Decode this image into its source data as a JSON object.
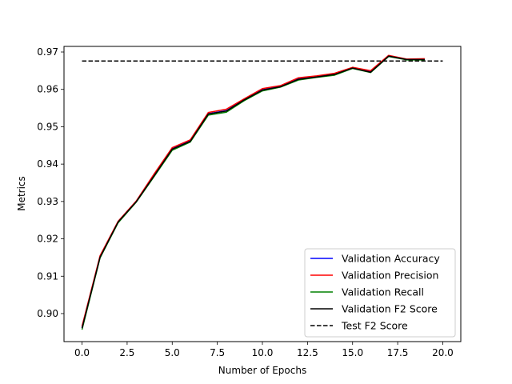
{
  "chart_data": {
    "type": "line",
    "title": "",
    "xlabel": "Number of Epochs",
    "ylabel": "Metrics",
    "xlim": [
      -1.0,
      21.0
    ],
    "ylim": [
      0.8925,
      0.9715
    ],
    "xticks": [
      0.0,
      2.5,
      5.0,
      7.5,
      10.0,
      12.5,
      15.0,
      17.5,
      20.0
    ],
    "xtick_labels": [
      "0.0",
      "2.5",
      "5.0",
      "7.5",
      "10.0",
      "12.5",
      "15.0",
      "17.5",
      "20.0"
    ],
    "yticks": [
      0.9,
      0.91,
      0.92,
      0.93,
      0.94,
      0.95,
      0.96,
      0.97
    ],
    "ytick_labels": [
      "0.90",
      "0.91",
      "0.92",
      "0.93",
      "0.94",
      "0.95",
      "0.96",
      "0.97"
    ],
    "grid": false,
    "legend_position": "lower-right",
    "x": [
      0,
      1,
      2,
      3,
      4,
      5,
      6,
      7,
      8,
      9,
      10,
      11,
      12,
      13,
      14,
      15,
      16,
      17,
      18,
      19
    ],
    "series": [
      {
        "name": "Validation Accuracy",
        "color": "#0000ff",
        "style": "solid",
        "values": [
          0.8962,
          0.9152,
          0.9245,
          0.93,
          0.937,
          0.9441,
          0.9462,
          0.9535,
          0.9543,
          0.9573,
          0.9599,
          0.9608,
          0.9628,
          0.9634,
          0.9641,
          0.9658,
          0.9647,
          0.969,
          0.968,
          0.968
        ]
      },
      {
        "name": "Validation Precision",
        "color": "#ff0000",
        "style": "solid",
        "values": [
          0.8966,
          0.9155,
          0.9247,
          0.9301,
          0.9374,
          0.9444,
          0.9465,
          0.9538,
          0.9547,
          0.9575,
          0.9602,
          0.961,
          0.9631,
          0.9636,
          0.9643,
          0.9659,
          0.965,
          0.9691,
          0.9681,
          0.9682
        ]
      },
      {
        "name": "Validation Recall",
        "color": "#008000",
        "style": "solid",
        "values": [
          0.8957,
          0.9149,
          0.9243,
          0.9298,
          0.9367,
          0.9437,
          0.9459,
          0.9531,
          0.9539,
          0.957,
          0.9596,
          0.9606,
          0.9625,
          0.9632,
          0.9638,
          0.9656,
          0.9645,
          0.9688,
          0.9679,
          0.9679
        ]
      },
      {
        "name": "Validation F2 Score",
        "color": "#000000",
        "style": "solid",
        "values": [
          0.8961,
          0.9151,
          0.9245,
          0.9299,
          0.9369,
          0.944,
          0.9461,
          0.9534,
          0.9542,
          0.9572,
          0.9598,
          0.9607,
          0.9627,
          0.9633,
          0.964,
          0.9657,
          0.9646,
          0.9689,
          0.968,
          0.968
        ]
      }
    ],
    "reference_lines": [
      {
        "name": "Test F2 Score",
        "color": "#000000",
        "style": "dashed",
        "x_range": [
          0,
          20
        ],
        "value": 0.9676
      }
    ]
  }
}
